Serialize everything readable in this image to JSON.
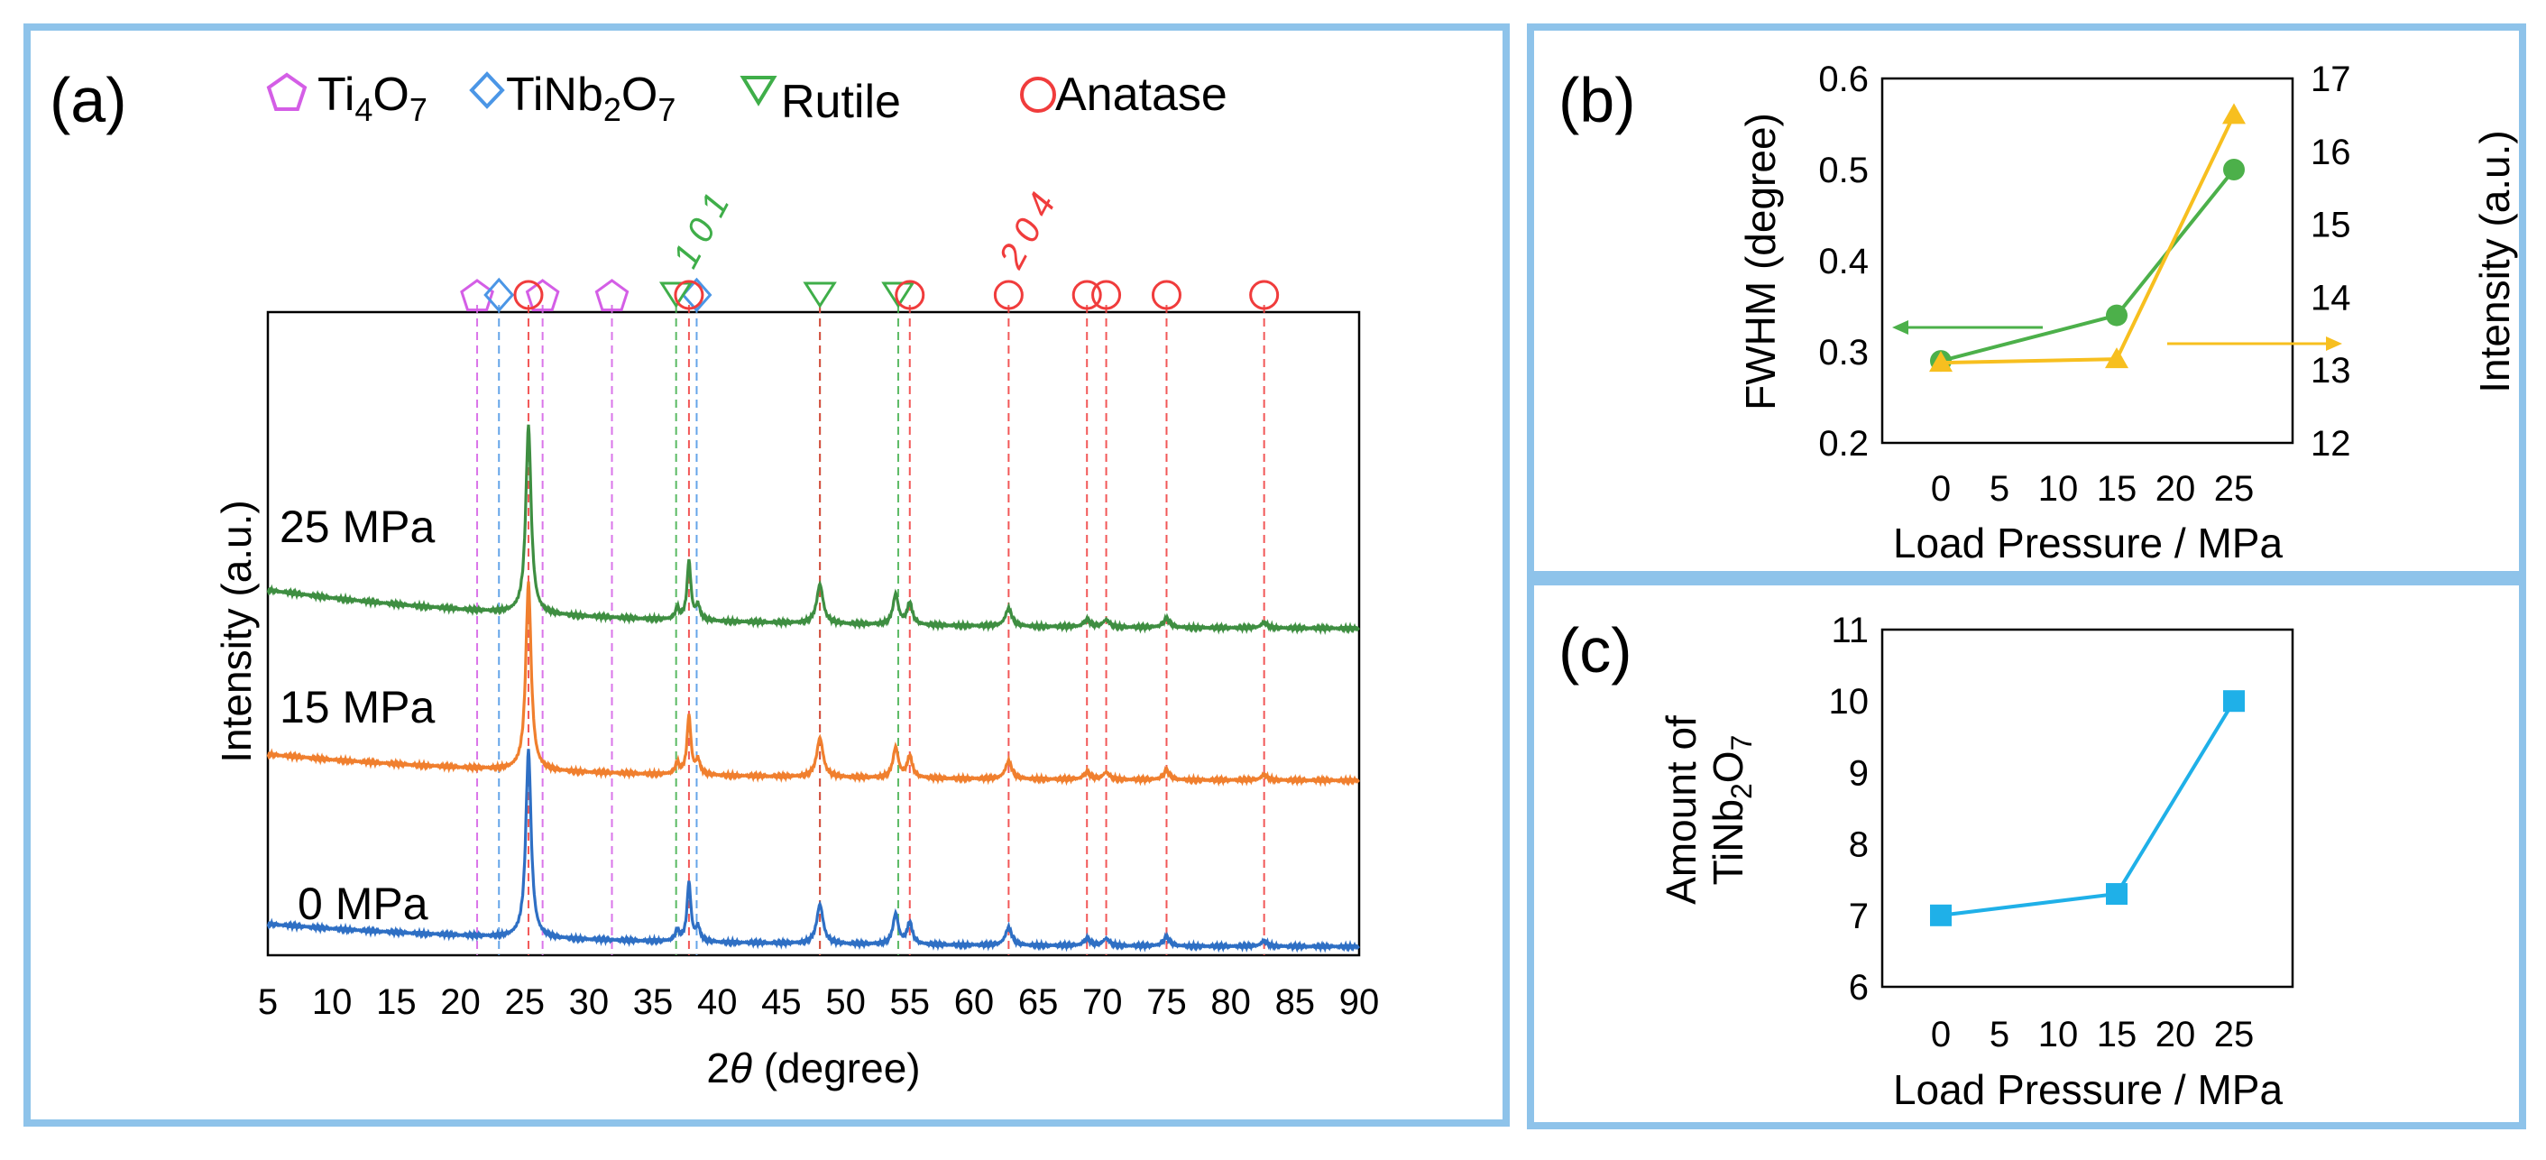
{
  "chart_data": [
    {
      "type": "line",
      "panel_label": "(a)",
      "title": "",
      "xlabel_pre": "2",
      "xlabel_var": "θ",
      "xlabel_post": " (degree)",
      "ylabel": "Intensity (a.u.)",
      "xlim": [
        5,
        90
      ],
      "xticks": [
        5,
        10,
        15,
        20,
        25,
        30,
        35,
        40,
        45,
        50,
        55,
        60,
        65,
        70,
        75,
        80,
        85,
        90
      ],
      "legend": [
        {
          "symbol": "pentagon",
          "base": "Ti",
          "sub1": "4",
          "mid": "O",
          "sub2": "7",
          "color": "#d45ee6"
        },
        {
          "symbol": "diamond",
          "base": "TiNb",
          "sub1": "2",
          "mid": "O",
          "sub2": "7",
          "color": "#4b96e6"
        },
        {
          "symbol": "triangle-down",
          "base": "Rutile",
          "sub1": "",
          "mid": "",
          "sub2": "",
          "color": "#3fae49"
        },
        {
          "symbol": "circle",
          "base": "Anatase",
          "sub1": "",
          "mid": "",
          "sub2": "",
          "color": "#f03c3c"
        }
      ],
      "reference_lines": {
        "Ti4O7": [
          21.3,
          26.4,
          31.8
        ],
        "TiNb2O7": [
          23.0,
          38.4
        ],
        "Rutile": [
          36.8,
          48.0,
          54.1
        ],
        "Anatase": [
          25.3,
          37.8,
          48.0,
          55.0,
          62.7,
          68.8,
          70.3,
          75.0,
          82.6
        ]
      },
      "reference_markers": {
        "Ti4O7": [
          21.3,
          26.4,
          31.8
        ],
        "TiNb2O7": [
          23.0,
          38.4
        ],
        "Rutile": [
          36.8,
          48.0,
          54.1
        ],
        "Anatase": [
          25.3,
          37.8,
          55.0,
          62.7,
          68.8,
          70.3,
          75.0,
          82.6
        ]
      },
      "annotations": [
        {
          "text": "101",
          "x": 37.3,
          "color": "#3fae49"
        },
        {
          "text": "204",
          "x": 62.7,
          "color": "#f03c3c"
        }
      ],
      "series": [
        {
          "name": "25 MPa",
          "color": "#3e8e41",
          "offset": 1.78,
          "bg_start": 0.22,
          "bg_end": 0.0
        },
        {
          "name": "15 MPa",
          "color": "#f07f2e",
          "offset": 0.93,
          "bg_start": 0.15,
          "bg_end": 0.0
        },
        {
          "name": "0 MPa",
          "color": "#2e6fc4",
          "offset": 0.0,
          "bg_start": 0.13,
          "bg_end": 0.0
        }
      ],
      "peaks": [
        {
          "x": 25.3,
          "h": 1.05,
          "w": 0.25
        },
        {
          "x": 36.9,
          "h": 0.06,
          "w": 0.2
        },
        {
          "x": 37.8,
          "h": 0.33,
          "w": 0.18
        },
        {
          "x": 38.5,
          "h": 0.08,
          "w": 0.2
        },
        {
          "x": 48.0,
          "h": 0.22,
          "w": 0.3
        },
        {
          "x": 53.9,
          "h": 0.17,
          "w": 0.25
        },
        {
          "x": 55.0,
          "h": 0.12,
          "w": 0.25
        },
        {
          "x": 62.7,
          "h": 0.1,
          "w": 0.3
        },
        {
          "x": 68.8,
          "h": 0.04,
          "w": 0.3
        },
        {
          "x": 70.3,
          "h": 0.04,
          "w": 0.3
        },
        {
          "x": 75.0,
          "h": 0.05,
          "w": 0.3
        },
        {
          "x": 82.6,
          "h": 0.03,
          "w": 0.3
        }
      ]
    },
    {
      "type": "line",
      "panel_label": "(b)",
      "title": "",
      "xlabel": "Load Pressure / MPa",
      "ylabel_left": "FWHM (degree)",
      "ylabel_right": "Intensity (a.u.)",
      "xlim": [
        -5,
        30
      ],
      "xticks": [
        0,
        5,
        10,
        15,
        20,
        25
      ],
      "ylim_left": [
        0.2,
        0.6
      ],
      "yticks_left": [
        "0.2",
        "0.3",
        "0.4",
        "0.5",
        "0.6"
      ],
      "ylim_right": [
        12,
        17
      ],
      "yticks_right": [
        "12",
        "13",
        "14",
        "15",
        "16",
        "17"
      ],
      "x": [
        0,
        15,
        25
      ],
      "series": [
        {
          "name": "FWHM",
          "axis": "left",
          "marker": "circle",
          "color": "#4cb04a",
          "values": [
            0.29,
            0.34,
            0.5
          ]
        },
        {
          "name": "Intensity",
          "axis": "right",
          "marker": "triangle",
          "color": "#f7bf1f",
          "values": [
            13.1,
            13.15,
            16.5
          ]
        }
      ]
    },
    {
      "type": "line",
      "panel_label": "(c)",
      "title": "",
      "xlabel": "Load Pressure / MPa",
      "ylabel_line1": "Amount of",
      "ylabel_base": "TiNb",
      "ylabel_sub1": "2",
      "ylabel_mid": "O",
      "ylabel_sub2": "7",
      "xlim": [
        -5,
        30
      ],
      "xticks": [
        0,
        5,
        10,
        15,
        20,
        25
      ],
      "ylim": [
        6,
        11
      ],
      "yticks": [
        "6",
        "7",
        "8",
        "9",
        "10",
        "11"
      ],
      "x": [
        0,
        15,
        25
      ],
      "series": [
        {
          "name": "TiNb2O7",
          "marker": "square",
          "color": "#1fb0e8",
          "values": [
            7.0,
            7.3,
            10.0
          ]
        }
      ]
    }
  ]
}
